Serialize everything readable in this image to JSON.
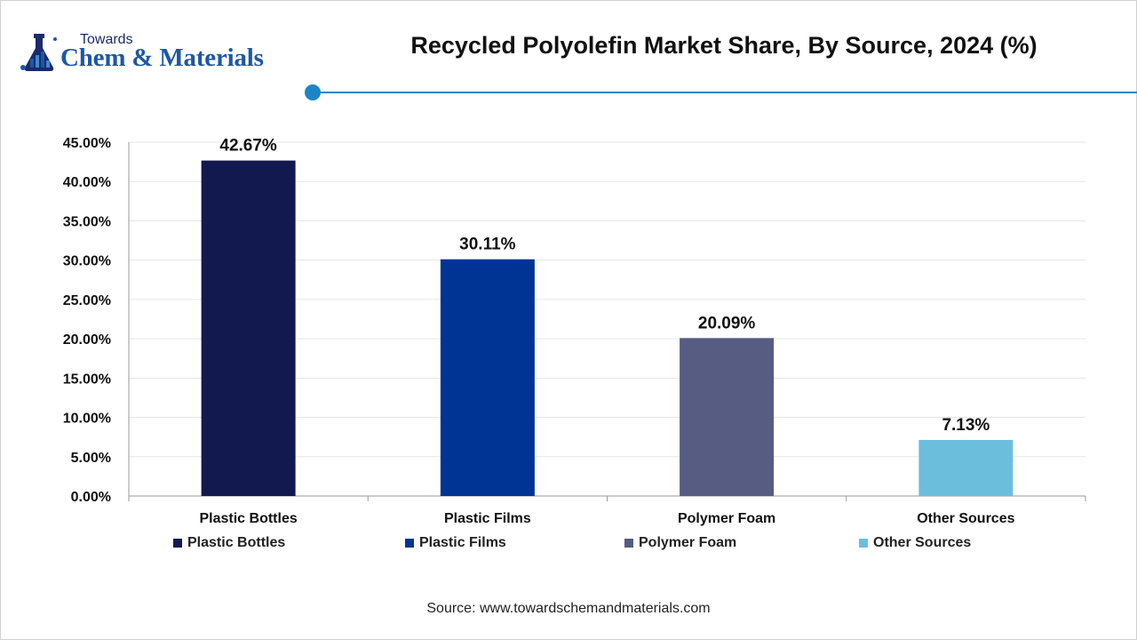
{
  "brand": {
    "line1": "Towards",
    "line2": "Chem & Materials"
  },
  "header": {
    "title": "Recycled Polyolefin Market Share, By Source, 2024 (%)"
  },
  "colors": {
    "accent": "#1a86c8",
    "grid": "#e6e6e6",
    "axis": "#9a9a9a"
  },
  "chart_data": {
    "type": "bar",
    "title": "Recycled Polyolefin Market Share, By Source, 2024 (%)",
    "categories": [
      "Plastic Bottles",
      "Plastic Films",
      "Polymer Foam",
      "Other Sources"
    ],
    "values": [
      42.67,
      30.11,
      20.09,
      7.13
    ],
    "value_labels": [
      "42.67%",
      "30.11%",
      "20.09%",
      "7.13%"
    ],
    "colors": [
      "#12194f",
      "#003494",
      "#565c82",
      "#6bbfdc"
    ],
    "ylim": [
      0,
      45
    ],
    "yticks": [
      0,
      5,
      10,
      15,
      20,
      25,
      30,
      35,
      40,
      45
    ],
    "ytick_labels": [
      "0.00%",
      "5.00%",
      "10.00%",
      "15.00%",
      "20.00%",
      "25.00%",
      "30.00%",
      "35.00%",
      "40.00%",
      "45.00%"
    ],
    "xlabel": "",
    "ylabel": "",
    "grid": true,
    "legend_position": "bottom",
    "legend": [
      "Plastic Bottles",
      "Plastic Films",
      "Polymer Foam",
      "Other Sources"
    ]
  },
  "footer": {
    "source": "Source: www.towardschemandmaterials.com"
  }
}
